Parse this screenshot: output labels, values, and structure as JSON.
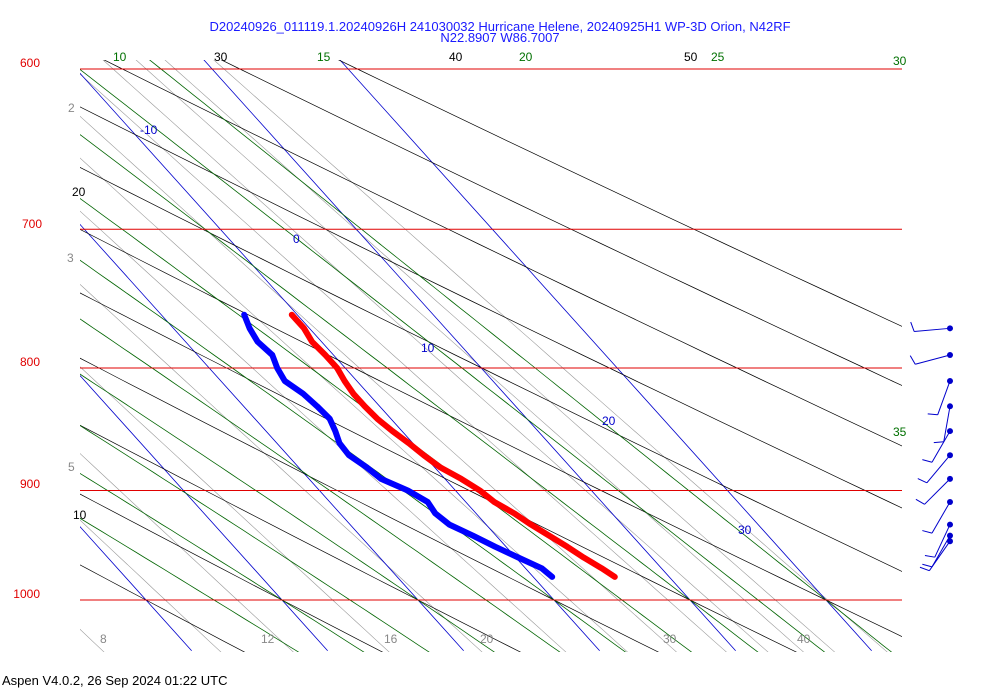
{
  "chart_data": {
    "type": "skew-t",
    "title": "D20240926_011119.1.20240926H 241030032 Hurricane Helene, 20240925H1 WP-3D Orion, N42RF",
    "subtitle": "N22.8907 W86.7007",
    "footer": "Aspen V4.0.2, 26 Sep 2024  01:22 UTC",
    "pressure_levels": [
      {
        "label": "600",
        "p": 600
      },
      {
        "label": "700",
        "p": 700
      },
      {
        "label": "800",
        "p": 800
      },
      {
        "label": "900",
        "p": 900
      },
      {
        "label": "1000",
        "p": 1000
      }
    ],
    "dry_adiabat_labels": [
      "10",
      "20",
      "30",
      "40",
      "50"
    ],
    "moist_adiabat_labels": [
      "10",
      "15",
      "20",
      "25",
      "30",
      "35"
    ],
    "isotherm_labels": [
      "-10",
      "0",
      "10",
      "20",
      "30"
    ],
    "mixing_ratio_labels": [
      "2",
      "3",
      "5",
      "8",
      "12",
      "16",
      "20",
      "30",
      "40"
    ],
    "colors": {
      "isobar": "#e00000",
      "isotherm": "#0000cc",
      "dry_adiabat": "#000000",
      "moist_adiabat": "#006400",
      "mixing_ratio": "#999999",
      "temperature": "#ff0000",
      "dewpoint": "#0000ff",
      "title": "#1a1aff"
    },
    "series": [
      {
        "name": "temperature",
        "points": [
          [
            760,
            19.6
          ],
          [
            770,
            19.6
          ],
          [
            780,
            19.3
          ],
          [
            790,
            19.4
          ],
          [
            800,
            19.4
          ],
          [
            810,
            19.1
          ],
          [
            820,
            18.9
          ],
          [
            830,
            18.9
          ],
          [
            840,
            19.0
          ],
          [
            850,
            19.3
          ],
          [
            860,
            19.7
          ],
          [
            870,
            20.0
          ],
          [
            880,
            20.4
          ],
          [
            890,
            21.2
          ],
          [
            900,
            21.8
          ],
          [
            910,
            22.1
          ],
          [
            920,
            22.8
          ],
          [
            930,
            23.3
          ],
          [
            940,
            23.9
          ],
          [
            950,
            24.5
          ],
          [
            960,
            25.0
          ],
          [
            970,
            25.6
          ],
          [
            978,
            26.0
          ]
        ]
      },
      {
        "name": "dewpoint",
        "points": [
          [
            760,
            16.1
          ],
          [
            770,
            15.6
          ],
          [
            780,
            15.3
          ],
          [
            790,
            15.5
          ],
          [
            800,
            15.0
          ],
          [
            810,
            14.7
          ],
          [
            820,
            15.2
          ],
          [
            830,
            15.4
          ],
          [
            840,
            15.5
          ],
          [
            850,
            15.1
          ],
          [
            860,
            14.6
          ],
          [
            870,
            14.5
          ],
          [
            880,
            15.0
          ],
          [
            890,
            15.3
          ],
          [
            900,
            16.5
          ],
          [
            910,
            17.2
          ],
          [
            920,
            17.0
          ],
          [
            930,
            17.3
          ],
          [
            940,
            18.3
          ],
          [
            950,
            19.2
          ],
          [
            960,
            20.2
          ],
          [
            970,
            21.2
          ],
          [
            978,
            21.4
          ]
        ]
      }
    ],
    "wind_barbs": [
      {
        "p": 770,
        "dir": 265,
        "spd": 15
      },
      {
        "p": 790,
        "dir": 255,
        "spd": 15
      },
      {
        "p": 810,
        "dir": 200,
        "spd": 15
      },
      {
        "p": 830,
        "dir": 190,
        "spd": 15
      },
      {
        "p": 850,
        "dir": 210,
        "spd": 15
      },
      {
        "p": 870,
        "dir": 220,
        "spd": 15
      },
      {
        "p": 890,
        "dir": 225,
        "spd": 15
      },
      {
        "p": 910,
        "dir": 210,
        "spd": 15
      },
      {
        "p": 930,
        "dir": 205,
        "spd": 15
      },
      {
        "p": 940,
        "dir": 210,
        "spd": 15
      },
      {
        "p": 945,
        "dir": 215,
        "spd": 15
      }
    ]
  }
}
